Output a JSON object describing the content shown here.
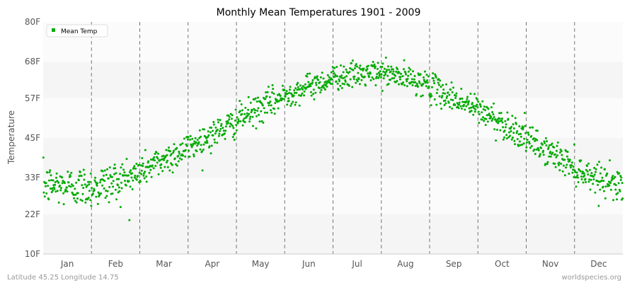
{
  "chart_data": {
    "type": "scatter",
    "title": "Monthly Mean Temperatures 1901 - 2009",
    "ylabel": "Temperature",
    "xlabel": "",
    "ylim": [
      10,
      80
    ],
    "y_ticks": [
      {
        "value": 10,
        "label": "10F"
      },
      {
        "value": 22,
        "label": "22F"
      },
      {
        "value": 33,
        "label": "33F"
      },
      {
        "value": 45,
        "label": "45F"
      },
      {
        "value": 57,
        "label": "57F"
      },
      {
        "value": 68,
        "label": "68F"
      },
      {
        "value": 80,
        "label": "80F"
      }
    ],
    "categories": [
      "Jan",
      "Feb",
      "Mar",
      "Apr",
      "May",
      "Jun",
      "Jul",
      "Aug",
      "Sep",
      "Oct",
      "Nov",
      "Dec"
    ],
    "grid": true,
    "legend": {
      "position": "top-left"
    },
    "series": [
      {
        "name": "Mean Temp",
        "color": "#00aa00",
        "years": 109,
        "monthly_means": [
          30.5,
          32.0,
          38.5,
          46.0,
          54.0,
          60.5,
          64.0,
          63.0,
          57.0,
          49.5,
          40.5,
          33.0
        ],
        "monthly_spread": [
          3.0,
          3.2,
          2.4,
          2.2,
          2.2,
          1.9,
          1.9,
          1.9,
          2.1,
          2.3,
          2.2,
          2.2
        ]
      }
    ]
  },
  "footer": {
    "location": "Latitude 45.25 Longitude 14.75",
    "source": "worldspecies.org"
  }
}
